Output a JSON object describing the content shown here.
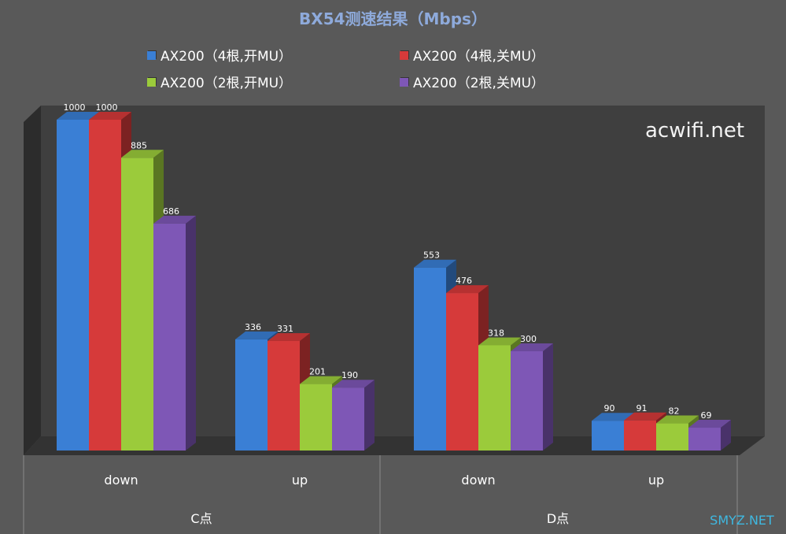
{
  "chart_data": {
    "type": "bar",
    "title": "BX54测速结果（Mbps）",
    "groups": [
      {
        "label": "C点",
        "categories": [
          "down",
          "up"
        ]
      },
      {
        "label": "D点",
        "categories": [
          "down",
          "up"
        ]
      }
    ],
    "categories": [
      "down",
      "up",
      "down",
      "up"
    ],
    "series": [
      {
        "name": "AX200（4根,开MU）",
        "color": "#3a7fd5",
        "values": [
          1000,
          336,
          553,
          90
        ]
      },
      {
        "name": "AX200（4根,关MU）",
        "color": "#d63a3a",
        "values": [
          1000,
          331,
          476,
          91
        ]
      },
      {
        "name": "AX200（2根,开MU）",
        "color": "#9bcb3b",
        "values": [
          885,
          201,
          318,
          82
        ]
      },
      {
        "name": "AX200（2根,关MU）",
        "color": "#7e57b6",
        "values": [
          686,
          190,
          300,
          69
        ]
      }
    ],
    "ylim": [
      0,
      1000
    ],
    "legend": "top",
    "grid": false,
    "style": "3d-column"
  },
  "watermarks": {
    "plot": "acwifi.net",
    "corner": "SMYZ.NET"
  }
}
